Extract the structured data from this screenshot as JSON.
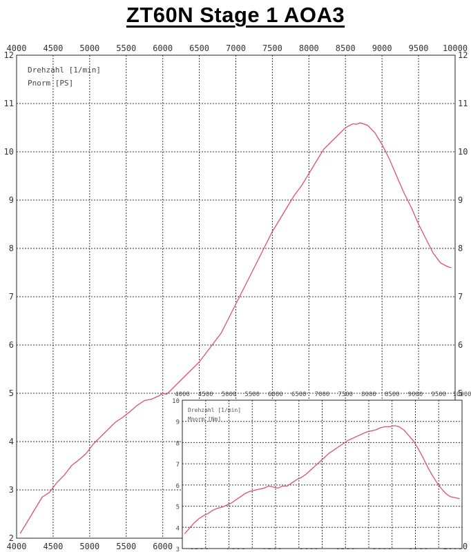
{
  "title": "ZT60N  Stage 1  AOA3",
  "colors": {
    "curve": "#e0506a",
    "grid": "#333333"
  },
  "chart_data": [
    {
      "type": "line",
      "legend": [
        "Drehzahl [1/min]",
        "Pnorm [PS]"
      ],
      "legend_position": "top-left",
      "grid": true,
      "xlim": [
        4000,
        10000
      ],
      "ylim": [
        2,
        12
      ],
      "x_ticks": [
        "4000",
        "4500",
        "5000",
        "5500",
        "6000",
        "6500",
        "7000",
        "7500",
        "8000",
        "8500",
        "9000",
        "9500",
        "10000"
      ],
      "y_ticks": [
        "2",
        "3",
        "4",
        "5",
        "6",
        "7",
        "8",
        "9",
        "10",
        "11",
        "12"
      ],
      "x_tick_positions": "top and bottom",
      "y_tick_positions": "left and right",
      "series": [
        {
          "x": [
            4050,
            4150,
            4250,
            4350,
            4450,
            4550,
            4650,
            4750,
            4850,
            4950,
            5050,
            5150,
            5250,
            5350,
            5450,
            5550,
            5650,
            5750,
            5850,
            5950,
            6000,
            6050,
            6100,
            6200,
            6300,
            6400,
            6500,
            6600,
            6700,
            6800,
            6900,
            7000,
            7100,
            7200,
            7300,
            7400,
            7500,
            7600,
            7700,
            7800,
            7900,
            8000,
            8100,
            8200,
            8300,
            8400,
            8500,
            8600,
            8650,
            8700,
            8800,
            8900,
            9000,
            9100,
            9200,
            9300,
            9400,
            9500,
            9550,
            9600,
            9700,
            9800,
            9900,
            9950
          ],
          "y": [
            2.1,
            2.35,
            2.6,
            2.85,
            2.95,
            3.15,
            3.3,
            3.5,
            3.62,
            3.75,
            3.95,
            4.1,
            4.25,
            4.4,
            4.5,
            4.62,
            4.75,
            4.85,
            4.88,
            4.95,
            5.0,
            4.98,
            5.05,
            5.2,
            5.35,
            5.5,
            5.65,
            5.85,
            6.05,
            6.25,
            6.55,
            6.85,
            7.15,
            7.45,
            7.75,
            8.05,
            8.35,
            8.6,
            8.85,
            9.1,
            9.3,
            9.55,
            9.8,
            10.05,
            10.2,
            10.35,
            10.5,
            10.58,
            10.57,
            10.6,
            10.55,
            10.4,
            10.15,
            9.85,
            9.5,
            9.15,
            8.85,
            8.5,
            8.35,
            8.2,
            7.9,
            7.7,
            7.62,
            7.6
          ]
        }
      ]
    },
    {
      "type": "line",
      "legend": [
        "Drehzahl [1/min]",
        "Mnorm [Nm]"
      ],
      "legend_position": "top-left",
      "grid": true,
      "xlim": [
        4000,
        10000
      ],
      "ylim": [
        3,
        10
      ],
      "x_ticks": [
        "4000",
        "4500",
        "5000",
        "5500",
        "6000",
        "6500",
        "7000",
        "7500",
        "8000",
        "8500",
        "9000",
        "9500",
        "10000"
      ],
      "y_ticks": [
        "3",
        "4",
        "5",
        "6",
        "7",
        "8",
        "9",
        "10"
      ],
      "series": [
        {
          "x": [
            4050,
            4150,
            4250,
            4350,
            4450,
            4550,
            4650,
            4750,
            4850,
            4950,
            5050,
            5150,
            5250,
            5350,
            5450,
            5550,
            5650,
            5750,
            5850,
            5950,
            6050,
            6150,
            6250,
            6350,
            6450,
            6550,
            6650,
            6750,
            6850,
            6950,
            7050,
            7150,
            7250,
            7350,
            7450,
            7550,
            7650,
            7750,
            7850,
            7950,
            8050,
            8150,
            8250,
            8350,
            8450,
            8550,
            8650,
            8750,
            8850,
            8950,
            9050,
            9150,
            9250,
            9350,
            9450,
            9550,
            9650,
            9750,
            9850,
            9950
          ],
          "y": [
            3.7,
            3.95,
            4.2,
            4.4,
            4.55,
            4.65,
            4.8,
            4.9,
            4.95,
            5.05,
            5.15,
            5.3,
            5.45,
            5.6,
            5.7,
            5.75,
            5.8,
            5.85,
            5.95,
            5.9,
            5.85,
            5.95,
            5.95,
            6.1,
            6.25,
            6.35,
            6.5,
            6.7,
            6.9,
            7.1,
            7.3,
            7.5,
            7.65,
            7.8,
            7.95,
            8.1,
            8.2,
            8.3,
            8.4,
            8.5,
            8.55,
            8.6,
            8.7,
            8.75,
            8.75,
            8.8,
            8.75,
            8.6,
            8.35,
            8.1,
            7.75,
            7.35,
            6.9,
            6.5,
            6.15,
            5.85,
            5.6,
            5.45,
            5.4,
            5.35
          ]
        }
      ]
    }
  ]
}
